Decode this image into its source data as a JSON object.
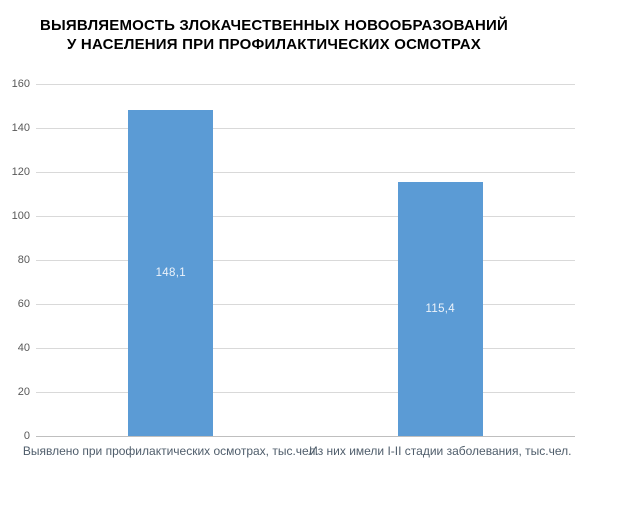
{
  "title": {
    "line1": "ВЫЯВЛЯЕМОСТЬ ЗЛОКАЧЕСТВЕННЫХ НОВООБРАЗОВАНИЙ",
    "line2": "У НАСЕЛЕНИЯ ПРИ ПРОФИЛАКТИЧЕСКИХ ОСМОТРАХ"
  },
  "chart_data": {
    "type": "bar",
    "title": "ВЫЯВЛЯЕМОСТЬ ЗЛОКАЧЕСТВЕННЫХ НОВООБРАЗОВАНИЙ У НАСЕЛЕНИЯ ПРИ ПРОФИЛАКТИЧЕСКИХ ОСМОТРАХ",
    "categories": [
      "Выявлено при профилактических осмотрах, тыс.чел.",
      "Из них имели I-II стадии заболевания, тыс.чел."
    ],
    "values": [
      148.1,
      115.4
    ],
    "value_labels": [
      "148,1",
      "115,4"
    ],
    "xlabel": "",
    "ylabel": "",
    "ylim": [
      0,
      160
    ],
    "yticks": [
      0,
      20,
      40,
      60,
      80,
      100,
      120,
      140,
      160
    ],
    "grid": true,
    "legend": "none",
    "colors": {
      "bar": "#5B9BD5",
      "value_label": "#EDF3FA",
      "gridline": "#D9D9D9",
      "axis_line": "#BFBFBF",
      "tick_label": "#595959",
      "category_label": "#4F5D6B",
      "title": "#000000",
      "background": "#FFFFFF"
    }
  }
}
